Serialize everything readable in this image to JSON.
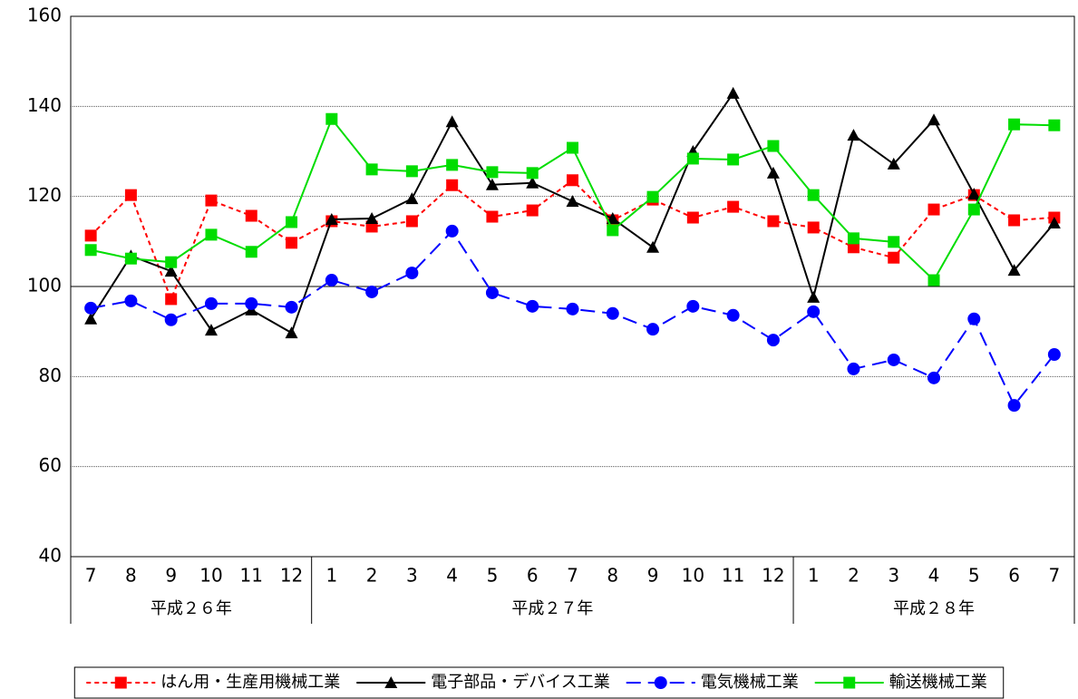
{
  "chart_data": {
    "type": "line",
    "category_groups": [
      {
        "label": "平成２６年",
        "categories": [
          "7",
          "8",
          "9",
          "10",
          "11",
          "12"
        ]
      },
      {
        "label": "平成２７年",
        "categories": [
          "1",
          "2",
          "3",
          "4",
          "5",
          "6",
          "7",
          "8",
          "9",
          "10",
          "11",
          "12"
        ]
      },
      {
        "label": "平成２８年",
        "categories": [
          "1",
          "2",
          "3",
          "4",
          "5",
          "6",
          "7"
        ]
      }
    ],
    "ylim": [
      40,
      160
    ],
    "yticks": [
      40,
      60,
      80,
      100,
      120,
      140,
      160
    ],
    "grid": true,
    "legend": "bottom",
    "series": [
      {
        "name": "はん用・生産用機械工業",
        "color": "#ff0000",
        "dash": "short",
        "marker": "square",
        "values": [
          111.3,
          120.3,
          97.2,
          119.1,
          115.7,
          109.7,
          114.5,
          113.3,
          114.5,
          122.5,
          115.5,
          116.9,
          123.6,
          114.7,
          119.3,
          115.3,
          117.7,
          114.5,
          113.1,
          108.7,
          106.4,
          117.1,
          120.3,
          114.7,
          115.3
        ]
      },
      {
        "name": "電子部品・デバイス工業",
        "color": "#000000",
        "dash": "solid",
        "marker": "triangle",
        "values": [
          92.8,
          106.8,
          103.4,
          90.3,
          94.8,
          89.7,
          114.9,
          115.1,
          119.5,
          136.6,
          122.6,
          123.0,
          118.9,
          115.1,
          108.7,
          130.0,
          142.9,
          125.2,
          97.6,
          133.6,
          127.2,
          137.0,
          120.5,
          103.6,
          114.1
        ]
      },
      {
        "name": "電気機械工業",
        "color": "#0000ff",
        "dash": "long",
        "marker": "circle",
        "values": [
          95.2,
          96.8,
          92.6,
          96.2,
          96.2,
          95.4,
          101.4,
          98.8,
          103.0,
          112.3,
          98.6,
          95.6,
          95.0,
          94.0,
          90.5,
          95.6,
          93.6,
          88.1,
          94.4,
          81.7,
          83.7,
          79.7,
          92.8,
          73.6,
          84.9
        ]
      },
      {
        "name": "輸送機械工業",
        "color": "#00dd00",
        "dash": "solid",
        "marker": "square",
        "values": [
          108.1,
          106.2,
          105.4,
          111.5,
          107.7,
          114.3,
          137.2,
          126.0,
          125.6,
          127.0,
          125.4,
          125.2,
          130.8,
          112.5,
          119.9,
          128.4,
          128.2,
          131.2,
          120.3,
          110.7,
          109.9,
          101.4,
          117.1,
          136.0,
          135.8
        ]
      }
    ]
  }
}
